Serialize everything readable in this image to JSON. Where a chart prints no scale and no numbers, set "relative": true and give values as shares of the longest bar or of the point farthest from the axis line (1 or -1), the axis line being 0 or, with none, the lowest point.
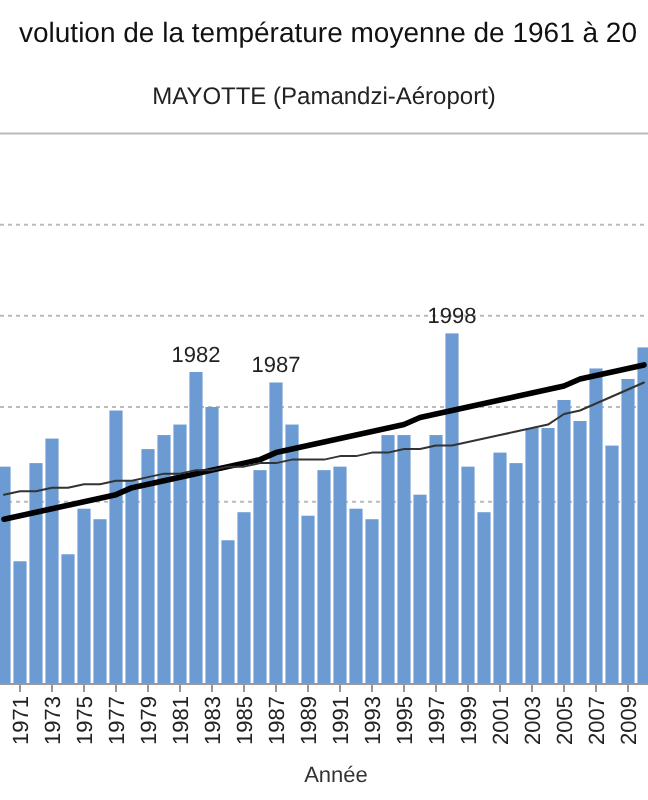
{
  "chart_data": {
    "type": "bar",
    "title": "volution de la température moyenne de 1961 à 20",
    "subtitle": "MAYOTTE (Pamandzi-Aéroport)",
    "xlabel": "Année",
    "relative": true,
    "ref_lines": [
      {
        "axis": "y",
        "value": 0.52,
        "color": "#bbbbbb",
        "line_style": "dotted"
      },
      {
        "axis": "y",
        "value": 0.79,
        "color": "#bbbbbb",
        "line_style": "dotted"
      },
      {
        "axis": "y",
        "value": 1.05,
        "color": "#bbbbbb",
        "line_style": "dotted"
      },
      {
        "axis": "y",
        "value": 1.31,
        "color": "#bbbbbb",
        "line_style": "dotted"
      },
      {
        "axis": "y",
        "value": 1.57,
        "color": "#bbbbbb",
        "line_style": "solid"
      }
    ],
    "annotations": [
      {
        "text": "1982",
        "y": 0.89
      },
      {
        "text": "1987",
        "y": 0.86
      },
      {
        "text": "1998",
        "y": 1
      }
    ],
    "categories": [
      null,
      "1971",
      null,
      "1973",
      null,
      "1975",
      null,
      "1977",
      null,
      "1979",
      null,
      "1981",
      null,
      "1983",
      null,
      "1985",
      null,
      "1987",
      null,
      "1989",
      null,
      "1991",
      null,
      "1993",
      null,
      "1995",
      null,
      "1997",
      null,
      "1999",
      null,
      "2001",
      null,
      "2003",
      null,
      "2005",
      null,
      "2007",
      null,
      "2009",
      null
    ],
    "series": [
      {
        "color": "#6b9bd2",
        "values": [
          0.62,
          0.35,
          0.63,
          0.7,
          0.37,
          0.5,
          0.47,
          0.78,
          0.58,
          0.67,
          0.71,
          0.74,
          0.89,
          0.79,
          0.41,
          0.49,
          0.61,
          0.86,
          0.74,
          0.48,
          0.61,
          0.62,
          0.5,
          0.47,
          0.71,
          0.71,
          0.54,
          0.71,
          1,
          0.62,
          0.49,
          0.66,
          0.63,
          0.73,
          0.73,
          0.81,
          0.75,
          0.9,
          0.68,
          0.87,
          0.96
        ]
      },
      {
        "type": "line",
        "color": "#000000",
        "line_style": "solid",
        "marker": "none",
        "values": [
          0.47,
          0.48,
          0.49,
          0.5,
          0.51,
          0.52,
          0.53,
          0.54,
          0.56,
          0.57,
          0.58,
          0.59,
          0.6,
          0.61,
          0.62,
          0.63,
          0.64,
          0.66,
          0.67,
          0.68,
          0.69,
          0.7,
          0.71,
          0.72,
          0.73,
          0.74,
          0.76,
          0.77,
          0.78,
          0.79,
          0.8,
          0.81,
          0.82,
          0.83,
          0.84,
          0.85,
          0.87,
          0.88,
          0.89,
          0.9,
          0.91
        ]
      },
      {
        "type": "line",
        "color": "#333333",
        "line_style": "solid",
        "marker": "none",
        "values": [
          0.54,
          0.55,
          0.55,
          0.56,
          0.56,
          0.57,
          0.57,
          0.58,
          0.58,
          0.59,
          0.6,
          0.6,
          0.61,
          0.61,
          0.62,
          0.62,
          0.63,
          0.63,
          0.64,
          0.64,
          0.64,
          0.65,
          0.65,
          0.66,
          0.66,
          0.67,
          0.67,
          0.68,
          0.68,
          0.69,
          0.7,
          0.71,
          0.72,
          0.73,
          0.74,
          0.77,
          0.78,
          0.8,
          0.82,
          0.84,
          0.86
        ]
      }
    ]
  }
}
